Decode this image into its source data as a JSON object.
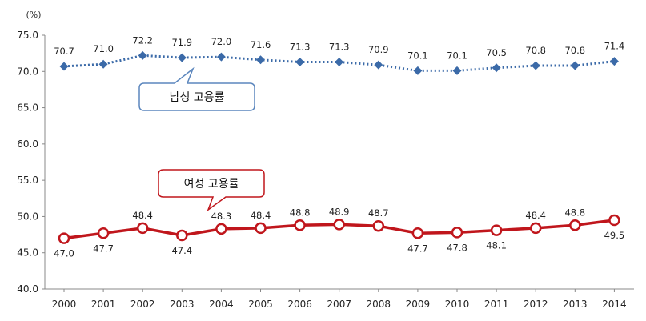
{
  "chart_data": {
    "type": "line",
    "unit_label": "(%)",
    "x": [
      "2000",
      "2001",
      "2002",
      "2003",
      "2004",
      "2005",
      "2006",
      "2007",
      "2008",
      "2009",
      "2010",
      "2011",
      "2012",
      "2013",
      "2014"
    ],
    "ylim": [
      40.0,
      75.0
    ],
    "yticks": [
      "40.0",
      "45.0",
      "50.0",
      "55.0",
      "60.0",
      "65.0",
      "70.0",
      "75.0"
    ],
    "grid": false,
    "series": [
      {
        "name": "남성 고용률",
        "style": "dotted",
        "marker": "diamond",
        "color": "#3b6aa8",
        "values": [
          70.7,
          71.0,
          72.2,
          71.9,
          72.0,
          71.6,
          71.3,
          71.3,
          70.9,
          70.1,
          70.1,
          70.5,
          70.8,
          70.8,
          71.4
        ],
        "labels": [
          "70.7",
          "71.0",
          "72.2",
          "71.9",
          "72.0",
          "71.6",
          "71.3",
          "71.3",
          "70.9",
          "70.1",
          "70.1",
          "70.5",
          "70.8",
          "70.8",
          "71.4"
        ]
      },
      {
        "name": "여성 고용률",
        "style": "solid",
        "marker": "hollow-circle",
        "color": "#c0161c",
        "values": [
          47.0,
          47.7,
          48.4,
          47.4,
          48.3,
          48.4,
          48.8,
          48.9,
          48.7,
          47.7,
          47.8,
          48.1,
          48.4,
          48.8,
          49.5
        ],
        "labels": [
          "47.0",
          "47.7",
          "48.4",
          "47.4",
          "48.3",
          "48.4",
          "48.8",
          "48.9",
          "48.7",
          "47.7",
          "47.8",
          "48.1",
          "48.4",
          "48.8",
          "49.5"
        ]
      }
    ]
  }
}
